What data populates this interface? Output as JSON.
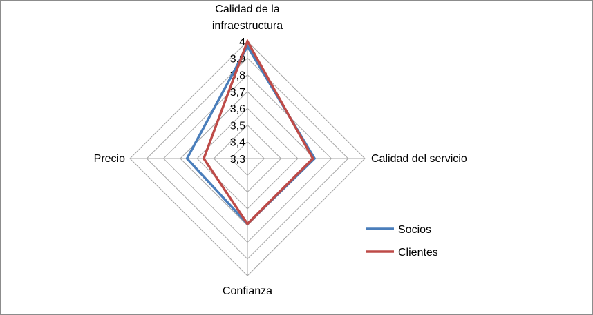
{
  "chart_data": {
    "type": "radar",
    "title": "",
    "axes": [
      "Calidad de la infraestructura",
      "Calidad del servicio",
      "Confianza",
      "Precio"
    ],
    "axis_label_lines": [
      [
        "Calidad de la",
        "infraestructura"
      ],
      [
        "Calidad del servicio"
      ],
      [
        "Confianza"
      ],
      [
        "Precio"
      ]
    ],
    "rmin": 3.3,
    "rmax": 4.0,
    "ticks": [
      "3,3",
      "3,4",
      "3,5",
      "3,6",
      "3,7",
      "3,8",
      "3,9",
      "4"
    ],
    "tick_values": [
      3.3,
      3.4,
      3.5,
      3.6,
      3.7,
      3.8,
      3.9,
      4.0
    ],
    "grid": true,
    "legend_position": "right",
    "series": [
      {
        "name": "Socios",
        "color": "#4a7ebb",
        "values": [
          3.97,
          3.7,
          3.69,
          3.66
        ]
      },
      {
        "name": "Clientes",
        "color": "#be4b48",
        "values": [
          4.0,
          3.69,
          3.69,
          3.56
        ]
      }
    ]
  }
}
